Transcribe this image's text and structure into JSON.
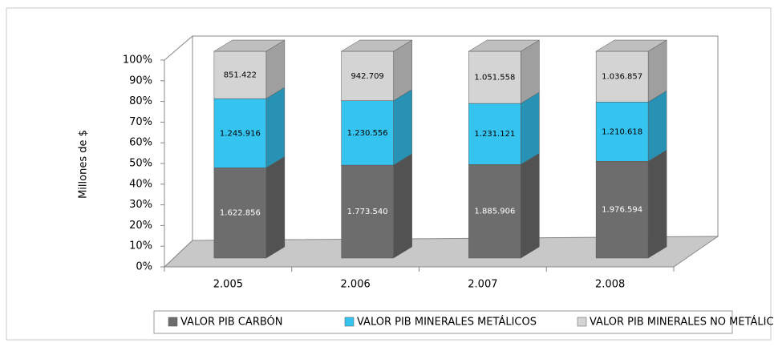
{
  "chart_data": {
    "type": "stacked_bar_100_3d",
    "y_label": "Millones de $",
    "categories": [
      "2.005",
      "2.006",
      "2.007",
      "2.008"
    ],
    "series": [
      {
        "name": "VALOR PIB CARBÓN",
        "color": "#6d6d6d",
        "values": [
          1622856,
          1773540,
          1885906,
          1976594
        ],
        "value_labels": [
          "1.622.856",
          "1.773.540",
          "1.885.906",
          "1.976.594"
        ]
      },
      {
        "name": "VALOR PIB MINERALES METÁLICOS",
        "color": "#35c3f0",
        "values": [
          1245916,
          1230556,
          1231121,
          1210618
        ],
        "value_labels": [
          "1.245.916",
          "1.230.556",
          "1.231.121",
          "1.210.618"
        ]
      },
      {
        "name": "VALOR PIB MINERALES NO METÁLICOS",
        "color": "#d4d4d4",
        "values": [
          851422,
          942709,
          1051558,
          1036857
        ],
        "value_labels": [
          "851.422",
          "942.709",
          "1.051.558",
          "1.036.857"
        ]
      }
    ],
    "ylim": [
      0,
      100
    ],
    "yticks": [
      {
        "value": 0,
        "label": "0%"
      },
      {
        "value": 10,
        "label": "10%"
      },
      {
        "value": 20,
        "label": "20%"
      },
      {
        "value": 30,
        "label": "30%"
      },
      {
        "value": 40,
        "label": "40%"
      },
      {
        "value": 50,
        "label": "50%"
      },
      {
        "value": 60,
        "label": "60%"
      },
      {
        "value": 70,
        "label": "70%"
      },
      {
        "value": 80,
        "label": "80%"
      },
      {
        "value": 90,
        "label": "90%"
      },
      {
        "value": 100,
        "label": "100%"
      }
    ],
    "legend": "bottom"
  }
}
